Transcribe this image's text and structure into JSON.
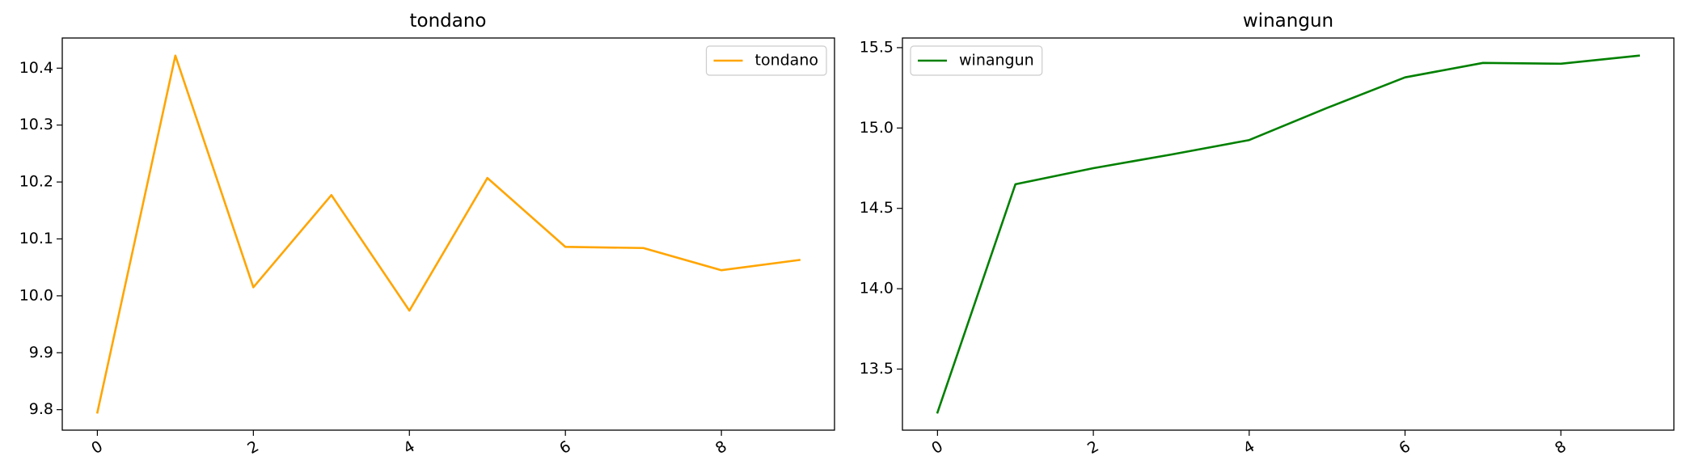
{
  "chart_data": [
    {
      "type": "line",
      "title": "tondano",
      "xlabel": "",
      "ylabel": "",
      "x": [
        0,
        1,
        2,
        3,
        4,
        5,
        6,
        7,
        8,
        9
      ],
      "series": [
        {
          "name": "tondano",
          "color": "#FFA500",
          "values": [
            9.795,
            10.422,
            10.015,
            10.177,
            9.974,
            10.207,
            10.086,
            10.084,
            10.045,
            10.063
          ]
        }
      ],
      "xticks": [
        0,
        2,
        4,
        6,
        8
      ],
      "xtick_labels": [
        "0",
        "2",
        "4",
        "6",
        "8"
      ],
      "yticks": [
        9.8,
        9.9,
        10.0,
        10.1,
        10.2,
        10.3,
        10.4
      ],
      "ytick_labels": [
        "9.8",
        "9.9",
        "10.0",
        "10.1",
        "10.2",
        "10.3",
        "10.4"
      ],
      "xlim": [
        -0.45,
        9.45
      ],
      "ylim": [
        9.764,
        10.453
      ],
      "grid": false,
      "legend_position": "top-right"
    },
    {
      "type": "line",
      "title": "winangun",
      "xlabel": "",
      "ylabel": "",
      "x": [
        0,
        1,
        2,
        3,
        4,
        5,
        6,
        7,
        8,
        9
      ],
      "series": [
        {
          "name": "winangun",
          "color": "#008000",
          "values": [
            13.23,
            14.65,
            14.75,
            14.835,
            14.925,
            15.125,
            15.315,
            15.405,
            15.4,
            15.45
          ]
        }
      ],
      "xticks": [
        0,
        2,
        4,
        6,
        8
      ],
      "xtick_labels": [
        "0",
        "2",
        "4",
        "6",
        "8"
      ],
      "yticks": [
        13.5,
        14.0,
        14.5,
        15.0,
        15.5
      ],
      "ytick_labels": [
        "13.5",
        "14.0",
        "14.5",
        "15.0",
        "15.5"
      ],
      "xlim": [
        -0.45,
        9.45
      ],
      "ylim": [
        13.12,
        15.56
      ],
      "grid": false,
      "legend_position": "top-left"
    }
  ]
}
